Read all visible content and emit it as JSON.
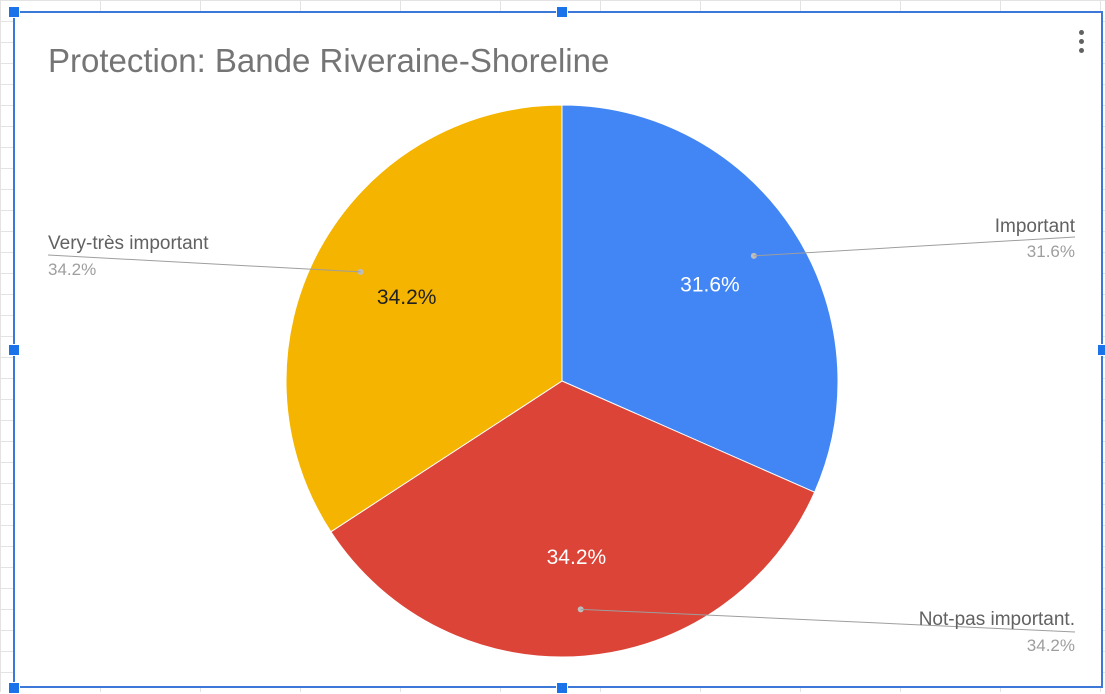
{
  "chart_data": {
    "type": "pie",
    "title": "Protection: Bande Riveraine-Shoreline",
    "slices": [
      {
        "label": "Important",
        "value": 31.6,
        "display": "31.6%",
        "color": "#4285f4",
        "text_color": "#ffffff"
      },
      {
        "label": "Not-pas important.",
        "value": 34.2,
        "display": "34.2%",
        "color": "#db4437",
        "text_color": "#ffffff"
      },
      {
        "label": "Very-très important",
        "value": 34.2,
        "display": "34.2%",
        "color": "#f4b400",
        "text_color": "#212121"
      }
    ],
    "start_angle_deg": 0,
    "direction": "clockwise",
    "legend": "none",
    "label_position": "outside-with-leader-lines"
  },
  "toolbar": {
    "menu_icon": "more-vert-icon"
  }
}
